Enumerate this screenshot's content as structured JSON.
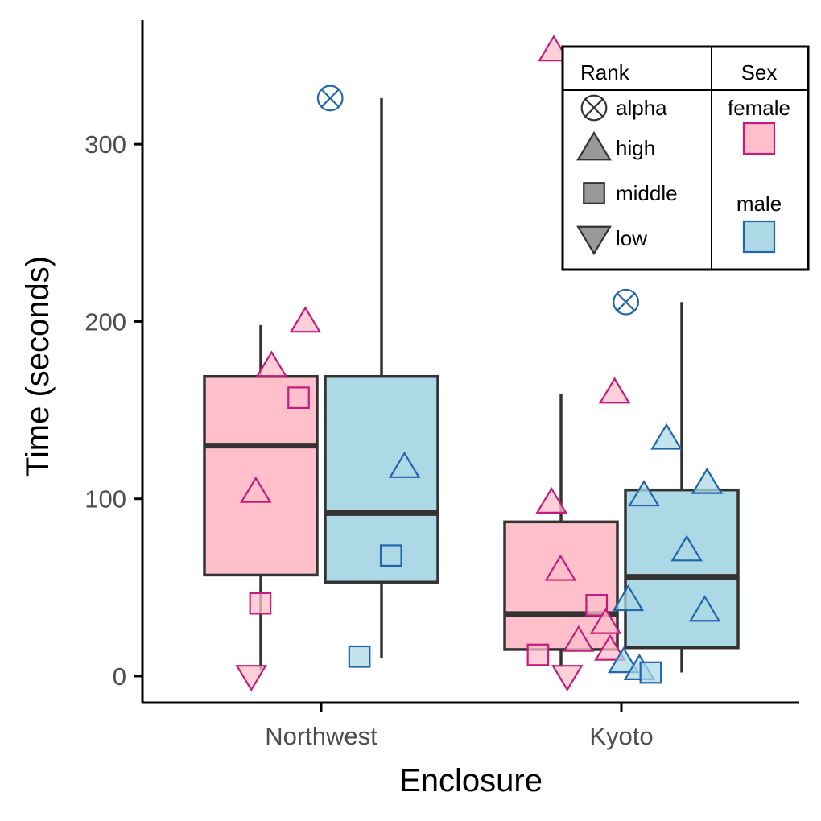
{
  "chart_data": {
    "type": "box",
    "xlabel": "Enclosure",
    "ylabel": "Time (seconds)",
    "ylim": [
      -15,
      370
    ],
    "yticks": [
      0,
      100,
      200,
      300
    ],
    "categories": [
      "Northwest",
      "Kyoto"
    ],
    "groups": [
      "female",
      "male"
    ],
    "colors": {
      "female_fill": "#ffc0cb",
      "female_line": "#c51b7d",
      "male_fill": "#add8e6",
      "male_line": "#2166ac",
      "box_line": "#333333",
      "legend_fill": "#999999"
    },
    "boxes": [
      {
        "category": "Northwest",
        "group": "female",
        "min": 3,
        "q1": 57,
        "median": 130,
        "q3": 169,
        "max": 198
      },
      {
        "category": "Northwest",
        "group": "male",
        "min": 10,
        "q1": 53,
        "median": 92,
        "q3": 169,
        "max": 326
      },
      {
        "category": "Kyoto",
        "group": "female",
        "min": 5,
        "q1": 15,
        "median": 35,
        "q3": 87,
        "max": 159
      },
      {
        "category": "Kyoto",
        "group": "male",
        "min": 2,
        "q1": 16,
        "median": 56,
        "q3": 105,
        "max": 211
      }
    ],
    "points": [
      {
        "category": "Northwest",
        "group": "female",
        "offset": -0.31,
        "y": 0,
        "rank": "low"
      },
      {
        "category": "Northwest",
        "group": "female",
        "offset": -0.27,
        "y": 41,
        "rank": "middle"
      },
      {
        "category": "Northwest",
        "group": "female",
        "offset": -0.29,
        "y": 104,
        "rank": "high"
      },
      {
        "category": "Northwest",
        "group": "female",
        "offset": -0.22,
        "y": 175,
        "rank": "high"
      },
      {
        "category": "Northwest",
        "group": "female",
        "offset": -0.1,
        "y": 157,
        "rank": "middle"
      },
      {
        "category": "Northwest",
        "group": "female",
        "offset": -0.07,
        "y": 200,
        "rank": "high"
      },
      {
        "category": "Northwest",
        "group": "male",
        "offset": 0.04,
        "y": 326,
        "rank": "alpha"
      },
      {
        "category": "Northwest",
        "group": "male",
        "offset": 0.17,
        "y": 11,
        "rank": "middle"
      },
      {
        "category": "Northwest",
        "group": "male",
        "offset": 0.31,
        "y": 68,
        "rank": "middle"
      },
      {
        "category": "Northwest",
        "group": "male",
        "offset": 0.37,
        "y": 118,
        "rank": "high"
      },
      {
        "category": "Kyoto",
        "group": "female",
        "offset": -0.37,
        "y": 12,
        "rank": "middle"
      },
      {
        "category": "Kyoto",
        "group": "female",
        "offset": -0.31,
        "y": 98,
        "rank": "high"
      },
      {
        "category": "Kyoto",
        "group": "female",
        "offset": -0.27,
        "y": 60,
        "rank": "high"
      },
      {
        "category": "Kyoto",
        "group": "female",
        "offset": -0.24,
        "y": 0,
        "rank": "low"
      },
      {
        "category": "Kyoto",
        "group": "female",
        "offset": -0.19,
        "y": 20,
        "rank": "high"
      },
      {
        "category": "Kyoto",
        "group": "female",
        "offset": -0.11,
        "y": 40,
        "rank": "middle"
      },
      {
        "category": "Kyoto",
        "group": "female",
        "offset": -0.07,
        "y": 30,
        "rank": "high"
      },
      {
        "category": "Kyoto",
        "group": "female",
        "offset": -0.05,
        "y": 15,
        "rank": "high"
      },
      {
        "category": "Kyoto",
        "group": "female",
        "offset": -0.03,
        "y": 160,
        "rank": "high"
      },
      {
        "category": "Kyoto",
        "group": "female",
        "offset": -0.3,
        "y": 353,
        "rank": "high"
      },
      {
        "category": "Kyoto",
        "group": "male",
        "offset": 0.01,
        "y": 8,
        "rank": "high"
      },
      {
        "category": "Kyoto",
        "group": "male",
        "offset": 0.03,
        "y": 43,
        "rank": "high"
      },
      {
        "category": "Kyoto",
        "group": "male",
        "offset": 0.02,
        "y": 211,
        "rank": "alpha"
      },
      {
        "category": "Kyoto",
        "group": "male",
        "offset": 0.08,
        "y": 4,
        "rank": "high"
      },
      {
        "category": "Kyoto",
        "group": "male",
        "offset": 0.1,
        "y": 102,
        "rank": "high"
      },
      {
        "category": "Kyoto",
        "group": "male",
        "offset": 0.13,
        "y": 2,
        "rank": "middle"
      },
      {
        "category": "Kyoto",
        "group": "male",
        "offset": 0.2,
        "y": 134,
        "rank": "high"
      },
      {
        "category": "Kyoto",
        "group": "male",
        "offset": 0.29,
        "y": 71,
        "rank": "high"
      },
      {
        "category": "Kyoto",
        "group": "male",
        "offset": 0.37,
        "y": 37,
        "rank": "high"
      },
      {
        "category": "Kyoto",
        "group": "male",
        "offset": 0.38,
        "y": 109,
        "rank": "high"
      }
    ],
    "legend": {
      "placement": "top-right",
      "rank_title": "Rank",
      "sex_title": "Sex",
      "ranks": [
        {
          "label": "alpha",
          "shape": "alpha"
        },
        {
          "label": "high",
          "shape": "high"
        },
        {
          "label": "middle",
          "shape": "middle"
        },
        {
          "label": "low",
          "shape": "low"
        }
      ],
      "sexes": [
        {
          "label": "female",
          "group": "female"
        },
        {
          "label": "male",
          "group": "male"
        }
      ]
    }
  }
}
